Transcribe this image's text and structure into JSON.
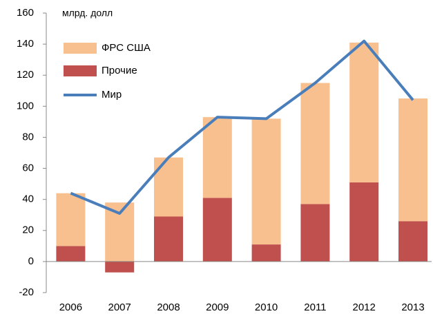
{
  "chart_data": {
    "type": "bar",
    "stacked": true,
    "unit_label": "млрд. долл",
    "categories": [
      "2006",
      "2007",
      "2008",
      "2009",
      "2010",
      "2011",
      "2012",
      "2013"
    ],
    "series": [
      {
        "name": "ФРС США",
        "color": "#f9c08f",
        "type": "bar",
        "values": [
          34,
          38,
          38,
          52,
          81,
          78,
          90,
          79
        ]
      },
      {
        "name": "Прочие",
        "color": "#c0504d",
        "type": "bar",
        "values": [
          10,
          -7,
          29,
          41,
          11,
          37,
          51,
          26
        ]
      },
      {
        "name": "Мир",
        "color": "#4a7ebb",
        "type": "line",
        "values": [
          44,
          31,
          67,
          93,
          92,
          115,
          142,
          104
        ]
      }
    ],
    "stack_order": [
      "Прочие",
      "ФРС США"
    ],
    "ylim": [
      -20,
      160
    ],
    "yticks": [
      -20,
      0,
      20,
      40,
      60,
      80,
      100,
      120,
      140,
      160
    ],
    "legend": "top-left"
  }
}
